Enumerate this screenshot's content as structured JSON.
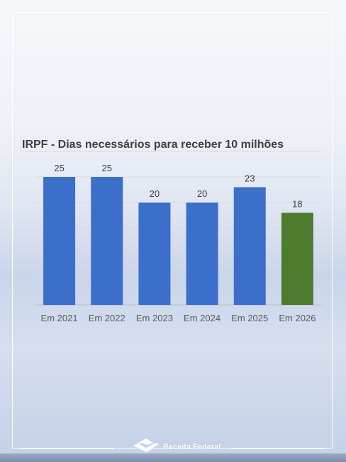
{
  "chart_data": {
    "type": "bar",
    "title": "IRPF - Dias necessários para receber 10 milhões",
    "categories": [
      "Em 2021",
      "Em 2022",
      "Em 2023",
      "Em 2024",
      "Em 2025",
      "Em 2026"
    ],
    "values": [
      25,
      25,
      20,
      20,
      23,
      18
    ],
    "bar_colors": [
      "#3b6fc9",
      "#3b6fc9",
      "#3b6fc9",
      "#3b6fc9",
      "#3b6fc9",
      "#4e7c2e"
    ],
    "ylim": [
      0,
      30
    ],
    "grid": true,
    "xlabel": "",
    "ylabel": ""
  },
  "footer": {
    "logo_text": "Receita Federal"
  }
}
